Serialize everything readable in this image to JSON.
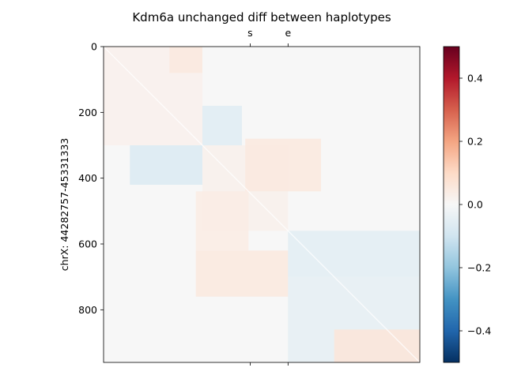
{
  "chart_data": {
    "type": "heatmap",
    "title": "Kdm6a unchanged diff between haplotypes",
    "ylabel": "chrX: 44282757-45331333",
    "xlabel": "",
    "ylim": [
      0,
      960
    ],
    "y_ticks": [
      "0",
      "200",
      "400",
      "600",
      "800"
    ],
    "y_tick_values": [
      0,
      200,
      400,
      600,
      800
    ],
    "top_markers": [
      {
        "label": "s",
        "position": 445
      },
      {
        "label": "e",
        "position": 560
      }
    ],
    "colorbar": {
      "colormap": "RdBu_r",
      "range": [
        -0.5,
        0.5
      ],
      "ticks": [
        "0.4",
        "0.2",
        "0.0",
        "−0.2",
        "−0.4"
      ],
      "tick_values": [
        0.4,
        0.2,
        0.0,
        -0.2,
        -0.4
      ],
      "colors": [
        "#053061",
        "#2166ac",
        "#4393c3",
        "#92c5de",
        "#d1e5f0",
        "#f7f7f7",
        "#fddbc7",
        "#f4a582",
        "#d6604d",
        "#b2182b",
        "#67001f"
      ]
    },
    "grid": false,
    "legend": "none",
    "blocks": [
      {
        "from": 0,
        "to": 300,
        "value": 0.015
      },
      {
        "from": 300,
        "to": 560,
        "value": 0.02
      },
      {
        "from": 560,
        "to": 960,
        "value": -0.03
      }
    ],
    "off_diagonal": [
      {
        "rows": [
          180,
          300
        ],
        "cols": [
          300,
          420
        ],
        "value": -0.06
      },
      {
        "rows": [
          300,
          420
        ],
        "cols": [
          80,
          300
        ],
        "value": -0.07
      },
      {
        "rows": [
          280,
          440
        ],
        "cols": [
          430,
          660
        ],
        "value": 0.05
      },
      {
        "rows": [
          440,
          620
        ],
        "cols": [
          280,
          440
        ],
        "value": 0.04
      },
      {
        "rows": [
          620,
          760
        ],
        "cols": [
          280,
          560
        ],
        "value": 0.05
      },
      {
        "rows": [
          560,
          700
        ],
        "cols": [
          560,
          960
        ],
        "value": -0.05
      },
      {
        "rows": [
          700,
          960
        ],
        "cols": [
          560,
          960
        ],
        "value": -0.04
      },
      {
        "rows": [
          860,
          960
        ],
        "cols": [
          700,
          960
        ],
        "value": 0.06
      },
      {
        "rows": [
          0,
          300
        ],
        "cols": [
          0,
          300
        ],
        "value": 0.02
      },
      {
        "rows": [
          0,
          80
        ],
        "cols": [
          200,
          300
        ],
        "value": 0.05
      }
    ]
  }
}
